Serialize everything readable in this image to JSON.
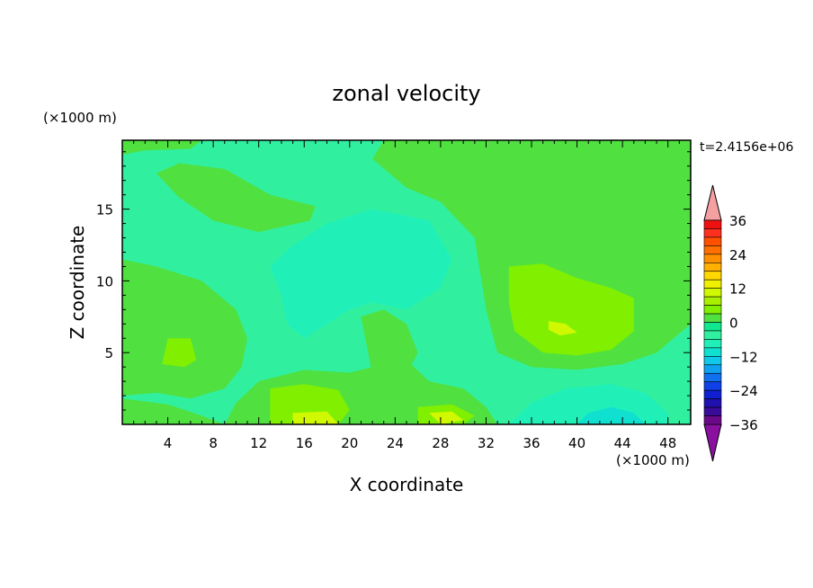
{
  "chart_data": {
    "type": "heatmap",
    "title": "zonal velocity",
    "xlabel": "X coordinate",
    "ylabel": "Z coordinate",
    "x_unit": "(×1000 m)",
    "y_unit": "(×1000 m)",
    "time_label": "t=2.4156e+06",
    "xlim": [
      0,
      50
    ],
    "ylim": [
      0,
      19.8
    ],
    "x_ticks": [
      4,
      8,
      12,
      16,
      20,
      24,
      28,
      32,
      36,
      40,
      44,
      48
    ],
    "y_ticks": [
      5,
      10,
      15
    ],
    "colorbar": {
      "levels": [
        -42,
        -39,
        -36,
        -33,
        -30,
        -27,
        -24,
        -21,
        -18,
        -15,
        -12,
        -9,
        -6,
        -3,
        0,
        3,
        6,
        9,
        12,
        15,
        18,
        21,
        24,
        27,
        30,
        33,
        36,
        39,
        42
      ],
      "tick_labels": [
        "36",
        "24",
        "12",
        "0",
        "−12",
        "−24",
        "−36"
      ],
      "tick_values": [
        36,
        24,
        12,
        0,
        -12,
        -24,
        -36
      ],
      "colors": [
        "#6a0a8a",
        "#3a0a9a",
        "#2010b0",
        "#1020d0",
        "#1040e8",
        "#1070f0",
        "#10a0f0",
        "#10c8e8",
        "#10e0d0",
        "#20f0b8",
        "#30f0a0",
        "#10e890",
        "#50e040",
        "#80f000",
        "#a8f000",
        "#d0f800",
        "#f0f000",
        "#ffd800",
        "#ffb000",
        "#ff9000",
        "#ff7000",
        "#ff5000",
        "#ff3020",
        "#f01010"
      ],
      "over_color": "#f4a0a0",
      "under_color": "#8a10a0"
    },
    "regions": [
      {
        "name": "base",
        "level": -3,
        "color": "#30f0a0",
        "points": [
          [
            0,
            0
          ],
          [
            50,
            0
          ],
          [
            50,
            19.8
          ],
          [
            0,
            19.8
          ]
        ]
      },
      {
        "name": "upper-right-positive",
        "level": 0,
        "color": "#50e040",
        "points": [
          [
            23,
            19.8
          ],
          [
            50,
            19.8
          ],
          [
            50,
            7
          ],
          [
            47,
            5
          ],
          [
            44,
            4.2
          ],
          [
            40,
            3.8
          ],
          [
            36,
            4
          ],
          [
            33,
            5
          ],
          [
            32,
            8
          ],
          [
            31,
            13
          ],
          [
            28,
            15.5
          ],
          [
            25,
            16.5
          ],
          [
            22,
            18.5
          ]
        ]
      },
      {
        "name": "upper-left-blob",
        "level": 0,
        "color": "#50e040",
        "points": [
          [
            3,
            17.5
          ],
          [
            5,
            18.2
          ],
          [
            9,
            17.8
          ],
          [
            13,
            16
          ],
          [
            17,
            15.2
          ],
          [
            16.5,
            14.2
          ],
          [
            12,
            13.4
          ],
          [
            8,
            14.2
          ],
          [
            5,
            15.8
          ]
        ]
      },
      {
        "name": "left-side-blob",
        "level": 0,
        "color": "#50e040",
        "points": [
          [
            0,
            11.5
          ],
          [
            3,
            11
          ],
          [
            7,
            10
          ],
          [
            10,
            8
          ],
          [
            11,
            6
          ],
          [
            10.5,
            4
          ],
          [
            9,
            2.5
          ],
          [
            6,
            1.8
          ],
          [
            3,
            2.2
          ],
          [
            0,
            2
          ]
        ]
      },
      {
        "name": "bottom-left-positive",
        "level": 0,
        "color": "#50e040",
        "points": [
          [
            0,
            1.8
          ],
          [
            4,
            1.4
          ],
          [
            7,
            0.6
          ],
          [
            9,
            0
          ],
          [
            0,
            0
          ]
        ]
      },
      {
        "name": "bottom-middle-positive",
        "level": 0,
        "color": "#50e040",
        "points": [
          [
            9,
            0
          ],
          [
            10,
            1.5
          ],
          [
            12,
            3
          ],
          [
            16,
            3.8
          ],
          [
            20,
            3.6
          ],
          [
            22,
            4
          ],
          [
            23,
            6
          ],
          [
            24,
            6.5
          ],
          [
            25,
            4.5
          ],
          [
            27,
            3
          ],
          [
            30,
            2.5
          ],
          [
            32,
            1.2
          ],
          [
            33,
            0
          ]
        ]
      },
      {
        "name": "mid-column-positive",
        "level": 0,
        "color": "#50e040",
        "points": [
          [
            21,
            7.5
          ],
          [
            23,
            8
          ],
          [
            25,
            7
          ],
          [
            26,
            5
          ],
          [
            25,
            3.5
          ],
          [
            22,
            3.5
          ]
        ]
      },
      {
        "name": "top-left-band",
        "level": 0,
        "color": "#50e040",
        "points": [
          [
            0,
            19.8
          ],
          [
            7,
            19.8
          ],
          [
            6,
            19.2
          ],
          [
            2,
            19.1
          ],
          [
            0,
            18.8
          ]
        ]
      },
      {
        "name": "right-core-strong",
        "level": 3,
        "color": "#80f000",
        "points": [
          [
            34,
            11
          ],
          [
            37,
            11.2
          ],
          [
            40,
            10.2
          ],
          [
            43,
            9.5
          ],
          [
            45,
            8.8
          ],
          [
            45,
            6.5
          ],
          [
            43,
            5.2
          ],
          [
            40,
            4.8
          ],
          [
            37,
            5
          ],
          [
            34.5,
            6.5
          ],
          [
            34,
            8.5
          ]
        ]
      },
      {
        "name": "left-core-strong",
        "level": 3,
        "color": "#80f000",
        "points": [
          [
            4,
            6
          ],
          [
            6,
            6
          ],
          [
            6.5,
            4.5
          ],
          [
            5.5,
            4
          ],
          [
            3.5,
            4.2
          ]
        ]
      },
      {
        "name": "bottom-core-strong",
        "level": 3,
        "color": "#80f000",
        "points": [
          [
            13,
            2.5
          ],
          [
            16,
            2.8
          ],
          [
            19,
            2.4
          ],
          [
            20,
            1
          ],
          [
            19,
            0
          ],
          [
            13,
            0
          ]
        ]
      },
      {
        "name": "bottom-right-core-strong",
        "level": 3,
        "color": "#80f000",
        "points": [
          [
            26,
            1.2
          ],
          [
            29,
            1.4
          ],
          [
            31,
            0.6
          ],
          [
            30,
            0
          ],
          [
            26,
            0
          ]
        ]
      },
      {
        "name": "right-core-peak",
        "level": 6,
        "color": "#d0f800",
        "points": [
          [
            37.5,
            7.2
          ],
          [
            39,
            7
          ],
          [
            40,
            6.4
          ],
          [
            38.5,
            6.2
          ],
          [
            37.5,
            6.6
          ]
        ]
      },
      {
        "name": "bottom-core-peak",
        "level": 6,
        "color": "#d0f800",
        "points": [
          [
            15,
            0.8
          ],
          [
            18,
            0.9
          ],
          [
            19,
            0
          ],
          [
            15,
            0
          ]
        ]
      },
      {
        "name": "bottom-right-core-peak",
        "level": 6,
        "color": "#d0f800",
        "points": [
          [
            27,
            0.8
          ],
          [
            29,
            0.9
          ],
          [
            30,
            0.3
          ],
          [
            28,
            0
          ]
        ]
      },
      {
        "name": "center-negative",
        "level": -6,
        "color": "#20f0b8",
        "points": [
          [
            13,
            11
          ],
          [
            15,
            12.5
          ],
          [
            18,
            14
          ],
          [
            22,
            15
          ],
          [
            27,
            14.2
          ],
          [
            29,
            11.5
          ],
          [
            28,
            9.5
          ],
          [
            25,
            8
          ],
          [
            22,
            8.5
          ],
          [
            20,
            8
          ],
          [
            18,
            7
          ],
          [
            16,
            6
          ],
          [
            14.5,
            7
          ],
          [
            14,
            9
          ]
        ]
      },
      {
        "name": "bottom-right-negative",
        "level": -6,
        "color": "#20f0b8",
        "points": [
          [
            34,
            0
          ],
          [
            36,
            1.5
          ],
          [
            39,
            2.5
          ],
          [
            43,
            2.8
          ],
          [
            46,
            2.2
          ],
          [
            48,
            0.8
          ],
          [
            48,
            0
          ]
        ]
      },
      {
        "name": "bottom-right-deeper-negative",
        "level": -9,
        "color": "#10e0d0",
        "points": [
          [
            40,
            0
          ],
          [
            41,
            0.8
          ],
          [
            43,
            1.2
          ],
          [
            45,
            0.8
          ],
          [
            46,
            0
          ]
        ]
      }
    ]
  }
}
